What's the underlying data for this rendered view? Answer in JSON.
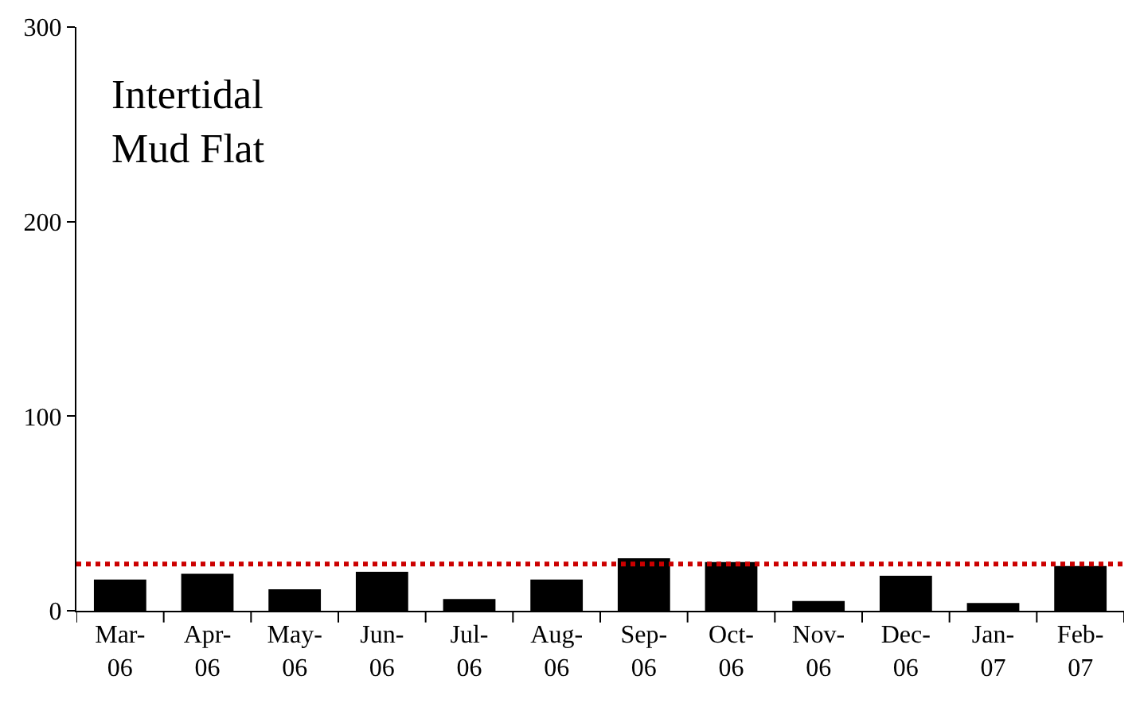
{
  "chart_data": {
    "type": "bar",
    "categories": [
      "Mar-\n06",
      "Apr-\n06",
      "May-\n06",
      "Jun-\n06",
      "Jul-\n06",
      "Aug-\n06",
      "Sep-\n06",
      "Oct-\n06",
      "Nov-\n06",
      "Dec-\n06",
      "Jan-\n07",
      "Feb-\n07"
    ],
    "values": [
      16,
      19,
      11,
      20,
      6,
      16,
      27,
      25,
      5,
      18,
      4,
      23
    ],
    "color": "#000000",
    "ylim": [
      0,
      300
    ],
    "yticks": [
      0,
      100,
      200,
      300
    ],
    "annotations": [
      "Intertidal\nMud Flat"
    ],
    "ref_lines": [
      {
        "axis": "y",
        "value": 24,
        "color": "#cc0000",
        "line_style": "dotted"
      }
    ]
  }
}
